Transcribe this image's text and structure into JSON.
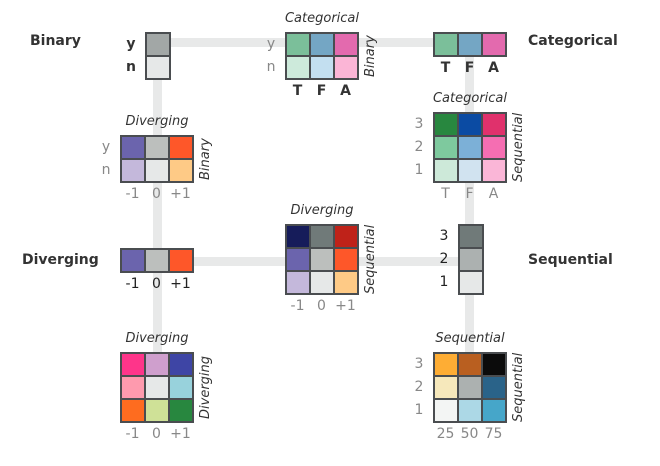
{
  "labels": {
    "binary": "Binary",
    "categorical": "Categorical",
    "diverging": "Diverging",
    "sequential": "Sequential"
  },
  "grids": [
    {
      "id": "binary",
      "rows": [
        [
          "#a2a7a6"
        ],
        [
          "#e6e8e8"
        ]
      ],
      "row_labels": [
        "y",
        "n"
      ],
      "col_labels": [],
      "title": "",
      "side": "",
      "label_style": "dark"
    },
    {
      "id": "categorical-binary",
      "rows": [
        [
          "#7bbf9a",
          "#74a6c4",
          "#e36aae"
        ],
        [
          "#cdeadb",
          "#c3dff0",
          "#fbb5d6"
        ]
      ],
      "row_labels": [
        "y",
        "n"
      ],
      "col_labels": [
        "T",
        "F",
        "A"
      ],
      "title": "Categorical",
      "side": "Binary",
      "label_style": "mixed"
    },
    {
      "id": "categorical",
      "rows": [
        [
          "#7bbf9a",
          "#74a6c4",
          "#e36aae"
        ]
      ],
      "row_labels": [],
      "col_labels": [
        "T",
        "F",
        "A"
      ],
      "title": "",
      "side": "",
      "label_style": "dark"
    },
    {
      "id": "diverging-binary",
      "rows": [
        [
          "#6b64ad",
          "#bcbfbd",
          "#fe5729"
        ],
        [
          "#c4b8db",
          "#e6e8e8",
          "#feca86"
        ]
      ],
      "row_labels": [
        "y",
        "n"
      ],
      "col_labels": [
        "-1",
        "0",
        "+1"
      ],
      "title": "Diverging",
      "side": "Binary",
      "label_style": "gray"
    },
    {
      "id": "categorical-sequential",
      "rows": [
        [
          "#28873f",
          "#0b4ba3",
          "#e0316c"
        ],
        [
          "#7ec99e",
          "#7cb0d7",
          "#f56eb2"
        ],
        [
          "#cde9d9",
          "#d1e3f0",
          "#fab6d7"
        ]
      ],
      "row_labels": [
        "3",
        "2",
        "1"
      ],
      "col_labels": [
        "T",
        "F",
        "A"
      ],
      "title": "Categorical",
      "side": "Sequential",
      "label_style": "gray"
    },
    {
      "id": "diverging",
      "rows": [
        [
          "#6b64ad",
          "#bcbfbd",
          "#fe5729"
        ]
      ],
      "row_labels": [],
      "col_labels": [
        "-1",
        "0",
        "+1"
      ],
      "title": "",
      "side": "",
      "label_style": "darkn"
    },
    {
      "id": "diverging-sequential",
      "rows": [
        [
          "#161c5a",
          "#707a79",
          "#bf2219"
        ],
        [
          "#6b64ad",
          "#bcbfbd",
          "#fe5729"
        ],
        [
          "#c4b8db",
          "#e6e8e8",
          "#feca86"
        ]
      ],
      "row_labels": [],
      "col_labels": [
        "-1",
        "0",
        "+1"
      ],
      "title": "Diverging",
      "side": "Sequential",
      "label_style": "gray"
    },
    {
      "id": "sequential",
      "rows": [
        [
          "#707a79"
        ],
        [
          "#acb1b0"
        ],
        [
          "#e6e8e8"
        ]
      ],
      "row_labels": [
        "3",
        "2",
        "1"
      ],
      "col_labels": [],
      "title": "",
      "side": "",
      "label_style": "darkn"
    },
    {
      "id": "diverging-diverging",
      "rows": [
        [
          "#fe358a",
          "#cf9fcd",
          "#3e45a5"
        ],
        [
          "#fe9aae",
          "#e6e8e8",
          "#98d2dc"
        ],
        [
          "#fe6c1f",
          "#cfe197",
          "#28873f"
        ]
      ],
      "row_labels": [],
      "col_labels": [
        "-1",
        "0",
        "+1"
      ],
      "title": "Diverging",
      "side": "Diverging",
      "label_style": "gray"
    },
    {
      "id": "sequential-sequential",
      "rows": [
        [
          "#fead34",
          "#b95f20",
          "#0b0b0b"
        ],
        [
          "#f6e8bb",
          "#acb1b0",
          "#2a6389"
        ],
        [
          "#f3f5f4",
          "#acd8e6",
          "#46a6c9"
        ]
      ],
      "row_labels": [
        "3",
        "2",
        "1"
      ],
      "col_labels": [
        "25",
        "50",
        "75"
      ],
      "title": "Sequential",
      "side": "Sequential",
      "label_style": "gray"
    }
  ]
}
